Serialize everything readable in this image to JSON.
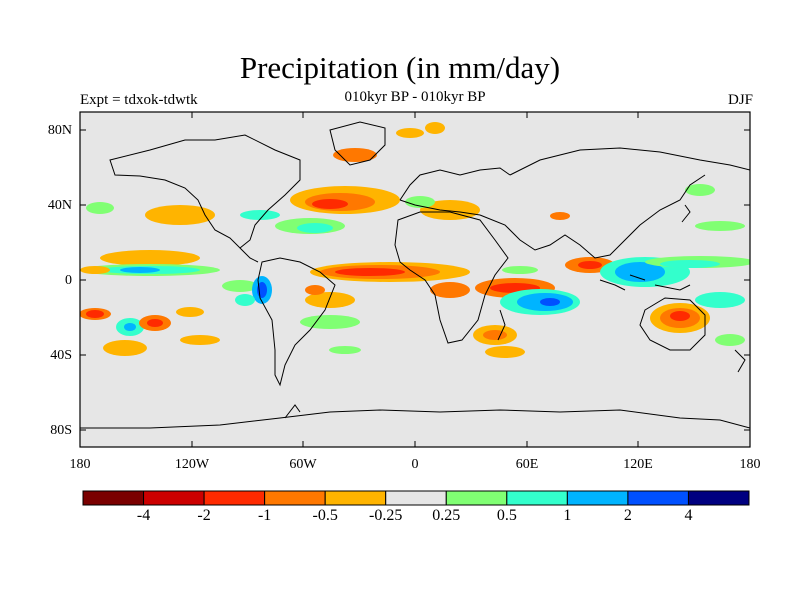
{
  "header": {
    "title": "Precipitation (in mm/day)",
    "experiment": "Expt = tdxok-tdwtk",
    "subtitle": "010kyr BP - 010kyr BP",
    "season": "DJF"
  },
  "map": {
    "lat_ticks": [
      "80N",
      "40N",
      "0",
      "40S",
      "80S"
    ],
    "lon_ticks": [
      "180",
      "120W",
      "60W",
      "0",
      "60E",
      "120E",
      "180"
    ],
    "background_color": "#e6e6e6",
    "coastline_color": "#000000"
  },
  "colorbar": {
    "colors": [
      "#7a0000",
      "#cc0000",
      "#ff2a00",
      "#ff7800",
      "#ffb400",
      "#e6e6e6",
      "#80ff73",
      "#33ffcc",
      "#00b4ff",
      "#0050ff",
      "#000080"
    ],
    "labels": [
      "-4",
      "-2",
      "-1",
      "-0.5",
      "-0.25",
      "0.25",
      "0.5",
      "1",
      "2",
      "4"
    ]
  }
}
